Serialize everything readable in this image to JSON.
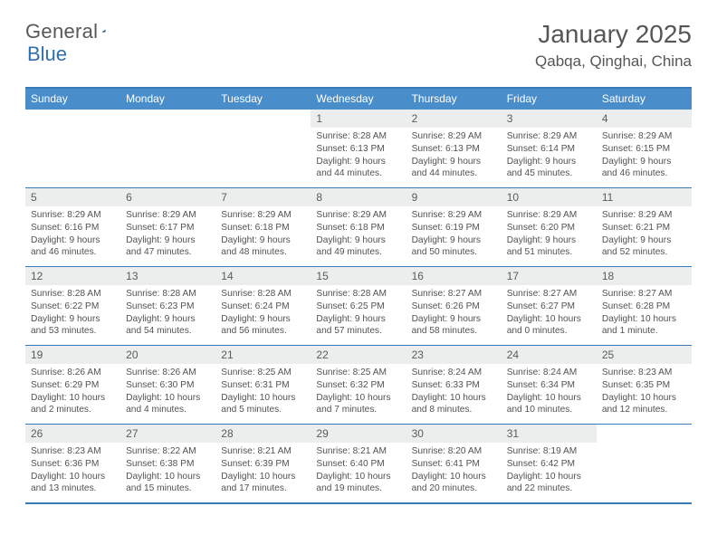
{
  "brand": {
    "name": "General",
    "accent": "Blue"
  },
  "colors": {
    "header_bar": "#4a8dcb",
    "rule": "#3a7ab8",
    "daynum_bg": "#eceded",
    "text": "#525252",
    "title": "#565656"
  },
  "title": "January 2025",
  "location": "Qabqa, Qinghai, China",
  "weekdays": [
    "Sunday",
    "Monday",
    "Tuesday",
    "Wednesday",
    "Thursday",
    "Friday",
    "Saturday"
  ],
  "weeks": [
    [
      {
        "n": "",
        "sr": "",
        "ss": "",
        "dl": ""
      },
      {
        "n": "",
        "sr": "",
        "ss": "",
        "dl": ""
      },
      {
        "n": "",
        "sr": "",
        "ss": "",
        "dl": ""
      },
      {
        "n": "1",
        "sr": "Sunrise: 8:28 AM",
        "ss": "Sunset: 6:13 PM",
        "dl": "Daylight: 9 hours and 44 minutes."
      },
      {
        "n": "2",
        "sr": "Sunrise: 8:29 AM",
        "ss": "Sunset: 6:13 PM",
        "dl": "Daylight: 9 hours and 44 minutes."
      },
      {
        "n": "3",
        "sr": "Sunrise: 8:29 AM",
        "ss": "Sunset: 6:14 PM",
        "dl": "Daylight: 9 hours and 45 minutes."
      },
      {
        "n": "4",
        "sr": "Sunrise: 8:29 AM",
        "ss": "Sunset: 6:15 PM",
        "dl": "Daylight: 9 hours and 46 minutes."
      }
    ],
    [
      {
        "n": "5",
        "sr": "Sunrise: 8:29 AM",
        "ss": "Sunset: 6:16 PM",
        "dl": "Daylight: 9 hours and 46 minutes."
      },
      {
        "n": "6",
        "sr": "Sunrise: 8:29 AM",
        "ss": "Sunset: 6:17 PM",
        "dl": "Daylight: 9 hours and 47 minutes."
      },
      {
        "n": "7",
        "sr": "Sunrise: 8:29 AM",
        "ss": "Sunset: 6:18 PM",
        "dl": "Daylight: 9 hours and 48 minutes."
      },
      {
        "n": "8",
        "sr": "Sunrise: 8:29 AM",
        "ss": "Sunset: 6:18 PM",
        "dl": "Daylight: 9 hours and 49 minutes."
      },
      {
        "n": "9",
        "sr": "Sunrise: 8:29 AM",
        "ss": "Sunset: 6:19 PM",
        "dl": "Daylight: 9 hours and 50 minutes."
      },
      {
        "n": "10",
        "sr": "Sunrise: 8:29 AM",
        "ss": "Sunset: 6:20 PM",
        "dl": "Daylight: 9 hours and 51 minutes."
      },
      {
        "n": "11",
        "sr": "Sunrise: 8:29 AM",
        "ss": "Sunset: 6:21 PM",
        "dl": "Daylight: 9 hours and 52 minutes."
      }
    ],
    [
      {
        "n": "12",
        "sr": "Sunrise: 8:28 AM",
        "ss": "Sunset: 6:22 PM",
        "dl": "Daylight: 9 hours and 53 minutes."
      },
      {
        "n": "13",
        "sr": "Sunrise: 8:28 AM",
        "ss": "Sunset: 6:23 PM",
        "dl": "Daylight: 9 hours and 54 minutes."
      },
      {
        "n": "14",
        "sr": "Sunrise: 8:28 AM",
        "ss": "Sunset: 6:24 PM",
        "dl": "Daylight: 9 hours and 56 minutes."
      },
      {
        "n": "15",
        "sr": "Sunrise: 8:28 AM",
        "ss": "Sunset: 6:25 PM",
        "dl": "Daylight: 9 hours and 57 minutes."
      },
      {
        "n": "16",
        "sr": "Sunrise: 8:27 AM",
        "ss": "Sunset: 6:26 PM",
        "dl": "Daylight: 9 hours and 58 minutes."
      },
      {
        "n": "17",
        "sr": "Sunrise: 8:27 AM",
        "ss": "Sunset: 6:27 PM",
        "dl": "Daylight: 10 hours and 0 minutes."
      },
      {
        "n": "18",
        "sr": "Sunrise: 8:27 AM",
        "ss": "Sunset: 6:28 PM",
        "dl": "Daylight: 10 hours and 1 minute."
      }
    ],
    [
      {
        "n": "19",
        "sr": "Sunrise: 8:26 AM",
        "ss": "Sunset: 6:29 PM",
        "dl": "Daylight: 10 hours and 2 minutes."
      },
      {
        "n": "20",
        "sr": "Sunrise: 8:26 AM",
        "ss": "Sunset: 6:30 PM",
        "dl": "Daylight: 10 hours and 4 minutes."
      },
      {
        "n": "21",
        "sr": "Sunrise: 8:25 AM",
        "ss": "Sunset: 6:31 PM",
        "dl": "Daylight: 10 hours and 5 minutes."
      },
      {
        "n": "22",
        "sr": "Sunrise: 8:25 AM",
        "ss": "Sunset: 6:32 PM",
        "dl": "Daylight: 10 hours and 7 minutes."
      },
      {
        "n": "23",
        "sr": "Sunrise: 8:24 AM",
        "ss": "Sunset: 6:33 PM",
        "dl": "Daylight: 10 hours and 8 minutes."
      },
      {
        "n": "24",
        "sr": "Sunrise: 8:24 AM",
        "ss": "Sunset: 6:34 PM",
        "dl": "Daylight: 10 hours and 10 minutes."
      },
      {
        "n": "25",
        "sr": "Sunrise: 8:23 AM",
        "ss": "Sunset: 6:35 PM",
        "dl": "Daylight: 10 hours and 12 minutes."
      }
    ],
    [
      {
        "n": "26",
        "sr": "Sunrise: 8:23 AM",
        "ss": "Sunset: 6:36 PM",
        "dl": "Daylight: 10 hours and 13 minutes."
      },
      {
        "n": "27",
        "sr": "Sunrise: 8:22 AM",
        "ss": "Sunset: 6:38 PM",
        "dl": "Daylight: 10 hours and 15 minutes."
      },
      {
        "n": "28",
        "sr": "Sunrise: 8:21 AM",
        "ss": "Sunset: 6:39 PM",
        "dl": "Daylight: 10 hours and 17 minutes."
      },
      {
        "n": "29",
        "sr": "Sunrise: 8:21 AM",
        "ss": "Sunset: 6:40 PM",
        "dl": "Daylight: 10 hours and 19 minutes."
      },
      {
        "n": "30",
        "sr": "Sunrise: 8:20 AM",
        "ss": "Sunset: 6:41 PM",
        "dl": "Daylight: 10 hours and 20 minutes."
      },
      {
        "n": "31",
        "sr": "Sunrise: 8:19 AM",
        "ss": "Sunset: 6:42 PM",
        "dl": "Daylight: 10 hours and 22 minutes."
      },
      {
        "n": "",
        "sr": "",
        "ss": "",
        "dl": ""
      }
    ]
  ]
}
